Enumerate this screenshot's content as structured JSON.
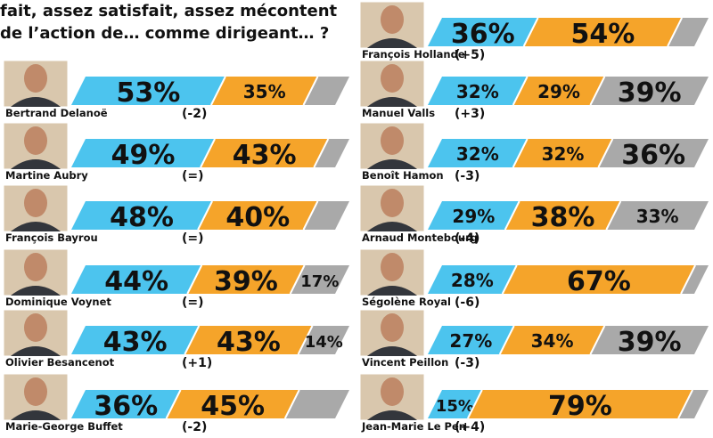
{
  "header": {
    "title_line1": "fait, assez satisfait, assez mécontent",
    "title_line2": "de l’action de… comme dirigeant… ?"
  },
  "colors": {
    "satisfied": "#4cc4ee",
    "dissatisfied": "#f5a42a",
    "other": "#a9a9a9"
  },
  "chart_data": {
    "type": "bar",
    "orientation": "horizontal-stacked",
    "series_order": [
      "blue",
      "orange",
      "gray"
    ],
    "categories": [
      "Bertrand Delanoë",
      "Martine Aubry",
      "François Bayrou",
      "Dominique Voynet",
      "Olivier Besancenot",
      "Marie-George Buffet",
      "François Hollande",
      "Manuel Valls",
      "Benoît Hamon",
      "Arnaud Montebourg",
      "Ségolène Royal",
      "Vincent Peillon",
      "Jean-Marie Le Pen"
    ],
    "people": [
      {
        "name": "Bertrand Delanoë",
        "delta": "(-2)",
        "values": [
          53,
          35,
          12
        ],
        "labels": [
          "53%",
          "35%",
          ""
        ]
      },
      {
        "name": "Martine Aubry",
        "delta": "(=)",
        "values": [
          49,
          43,
          8
        ],
        "labels": [
          "49%",
          "43%",
          ""
        ]
      },
      {
        "name": "François Bayrou",
        "delta": "(=)",
        "values": [
          48,
          40,
          12
        ],
        "labels": [
          "48%",
          "40%",
          ""
        ]
      },
      {
        "name": "Dominique Voynet",
        "delta": "(=)",
        "values": [
          44,
          39,
          17
        ],
        "labels": [
          "44%",
          "39%",
          "17%"
        ]
      },
      {
        "name": "Olivier Besancenot",
        "delta": "(+1)",
        "values": [
          43,
          43,
          14
        ],
        "labels": [
          "43%",
          "43%",
          "14%"
        ]
      },
      {
        "name": "Marie-George Buffet",
        "delta": "(-2)",
        "values": [
          36,
          45,
          19
        ],
        "labels": [
          "36%",
          "45%",
          ""
        ]
      },
      {
        "name": "François Hollande",
        "delta": "(+5)",
        "values": [
          36,
          54,
          10
        ],
        "labels": [
          "36%",
          "54%",
          ""
        ]
      },
      {
        "name": "Manuel Valls",
        "delta": "(+3)",
        "values": [
          32,
          29,
          39
        ],
        "labels": [
          "32%",
          "29%",
          "39%"
        ]
      },
      {
        "name": "Benoît Hamon",
        "delta": "(-3)",
        "values": [
          32,
          32,
          36
        ],
        "labels": [
          "32%",
          "32%",
          "36%"
        ]
      },
      {
        "name": "Arnaud Montebourg",
        "delta": "(-4)",
        "values": [
          29,
          38,
          33
        ],
        "labels": [
          "29%",
          "38%",
          "33%"
        ]
      },
      {
        "name": "Ségolène Royal",
        "delta": "(-6)",
        "values": [
          28,
          67,
          5
        ],
        "labels": [
          "28%",
          "67%",
          ""
        ]
      },
      {
        "name": "Vincent Peillon",
        "delta": "(-3)",
        "values": [
          27,
          34,
          39
        ],
        "labels": [
          "27%",
          "34%",
          "39%"
        ]
      },
      {
        "name": "Jean-Marie Le Pen",
        "delta": "(+4)",
        "values": [
          15,
          79,
          6
        ],
        "labels": [
          "15%",
          "79%",
          ""
        ]
      }
    ]
  }
}
